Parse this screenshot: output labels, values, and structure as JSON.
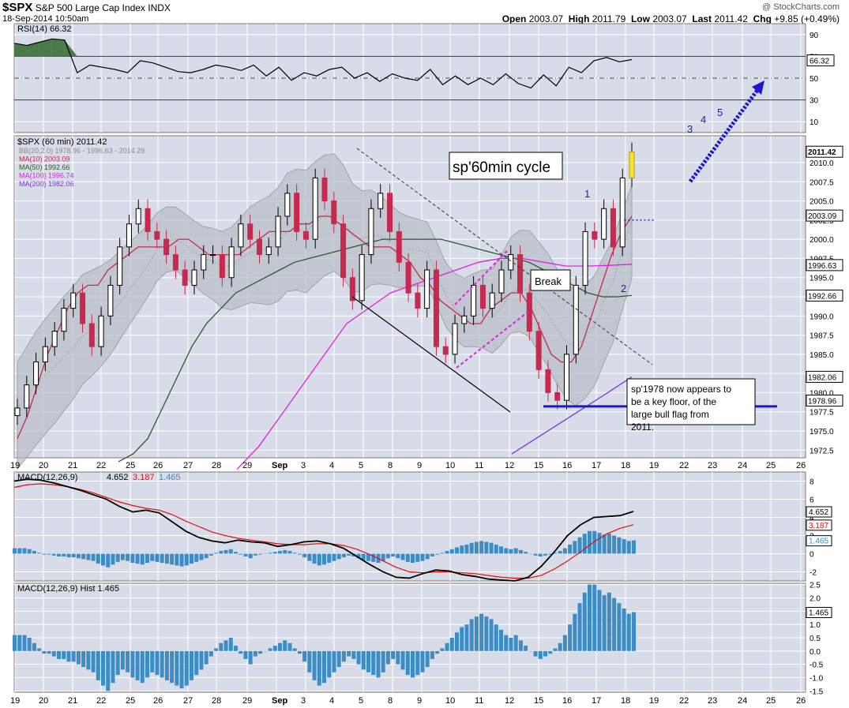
{
  "header": {
    "ticker": "$SPX",
    "name": "S&P 500 Large Cap Index",
    "exchange": "INDX",
    "date": "18-Sep-2014 10:50am",
    "watermark": "@ StockCharts.com",
    "open_label": "Open",
    "open": "2003.07",
    "high_label": "High",
    "high": "2011.79",
    "low_label": "Low",
    "low": "2003.07",
    "last_label": "Last",
    "last": "2011.42",
    "chg_label": "Chg",
    "chg": "+9.85",
    "chg_pct": "(+0.49%)"
  },
  "colors": {
    "background": "#d8dce8",
    "grid": "#ffffff",
    "candle_up": "#000000",
    "candle_down": "#c8294e",
    "bollinger_fill": "#b8bcc8",
    "ma10": "#c8294e",
    "ma50": "#2b5a2b",
    "ma100": "#e020e0",
    "ma200": "#7a3ad8",
    "macd_hist": "#3d8cc4",
    "annotation_blue": "#1a1acc",
    "rsi_area": "#4a7a4a"
  },
  "legend": {
    "price_title": "$SPX (60 min) 2011.42",
    "bb": "BB(20,2.0) 1978.96 - 1996.63 - 2014.29",
    "ma10": "MA(10) 2003.09",
    "ma50": "MA(50) 1992.66",
    "ma100": "MA(100) 1996.74",
    "ma200": "MA(200) 1982.06",
    "rsi": "RSI(14) 66.32",
    "macd_title": "MACD(12,26,9)",
    "macd_values": [
      "4.652",
      "3.187",
      "1.465"
    ],
    "hist_title": "MACD(12,26,9) Hist 1.465"
  },
  "annotations": {
    "cycle_box": "sp'60min cycle",
    "break_box": "Break",
    "floor_box": "sp'1978 now appears to be a key floor, of the large bull flag from 2011.",
    "wave_labels": [
      "1",
      "2",
      "3",
      "4",
      "5"
    ]
  },
  "chart_data": [
    {
      "type": "line",
      "title": "RSI(14) 66.32",
      "y_ticks": [
        10,
        30,
        50,
        70,
        90
      ],
      "ylim": [
        0,
        100
      ],
      "last_value": 66.32,
      "value_label": "66.32",
      "series": [
        {
          "name": "RSI(14)",
          "values": [
            82,
            80,
            83,
            86,
            85,
            55,
            62,
            60,
            58,
            55,
            66,
            64,
            60,
            56,
            55,
            58,
            62,
            60,
            57,
            62,
            52,
            60,
            48,
            55,
            52,
            58,
            60,
            50,
            55,
            47,
            54,
            50,
            48,
            58,
            44,
            52,
            44,
            50,
            44,
            54,
            45,
            41,
            53,
            43,
            60,
            55,
            66,
            69,
            65,
            67
          ]
        }
      ]
    },
    {
      "type": "candlestick",
      "title": "$SPX (60 min) 2011.42",
      "ylim": [
        1971.5,
        2013.5
      ],
      "y_ticks": [
        1972.5,
        1975,
        1977.5,
        1980,
        1982.5,
        1985,
        1987.5,
        1990,
        1992.5,
        1995,
        1997.5,
        2000,
        2002.5,
        2005,
        2007.5,
        2010
      ],
      "x_tick_labels": [
        "19",
        "20",
        "21",
        "22",
        "25",
        "26",
        "27",
        "28",
        "29",
        "Sep",
        "3",
        "4",
        "5",
        "8",
        "9",
        "10",
        "11",
        "12",
        "15",
        "16",
        "17",
        "18",
        "19",
        "22",
        "23",
        "24",
        "25",
        "26"
      ],
      "price_labels": [
        {
          "value": 2011.42,
          "text": "2011.42"
        },
        {
          "value": 2003.09,
          "text": "2003.09"
        },
        {
          "value": 1996.63,
          "text": "1996.63"
        },
        {
          "value": 1992.66,
          "text": "1992.66"
        },
        {
          "value": 1982.06,
          "text": "1982.06"
        },
        {
          "value": 1978.96,
          "text": "1978.96"
        }
      ],
      "closes": [
        1978,
        1981,
        1984,
        1986,
        1988,
        1991,
        1993,
        1989,
        1986,
        1990,
        1994,
        1999,
        2002,
        2004,
        2001,
        2000,
        1998,
        1996,
        1994,
        1996,
        1998,
        1998,
        1995,
        1999,
        2002,
        2000,
        1998,
        1999,
        2003,
        2006,
        2001,
        2000,
        2008,
        2005,
        2002,
        1995,
        1992,
        1998,
        2004,
        2006,
        2001,
        1997,
        1993,
        1991,
        1996,
        1986,
        1985,
        1989,
        1990,
        1994,
        1991,
        1993,
        1996,
        1998,
        1993,
        1988,
        1983,
        1980,
        1979,
        1985,
        1994,
        2001,
        2000,
        2004,
        1999,
        2008,
        2011.4
      ],
      "series": [
        {
          "name": "MA(10)",
          "values": [
            1974,
            1977,
            1981,
            1985,
            1988,
            1991,
            1993,
            1994,
            1994,
            1996,
            1997,
            1998,
            1999,
            1999,
            1999,
            1999,
            2000,
            2000,
            1999,
            1998,
            1998,
            1998,
            1998,
            1999,
            2000,
            2001,
            2001,
            2001,
            2002,
            2002,
            2003,
            2003,
            2002,
            2001,
            2000,
            1999,
            1999,
            1999,
            1998,
            1997,
            1995,
            1994,
            1992,
            1991,
            1990,
            1989,
            1989,
            1991,
            1992,
            1993,
            1993,
            1991,
            1988,
            1985,
            1984,
            1984,
            1986,
            1990,
            1994,
            1998,
            2001,
            2003
          ]
        },
        {
          "name": "MA(50)",
          "values": [
            1971,
            1972,
            1974,
            1978,
            1982,
            1986,
            1989,
            1991,
            1993,
            1994,
            1995,
            1996,
            1997,
            1997.5,
            1998,
            1998.5,
            1999,
            1999.5,
            2000,
            2000,
            2000,
            2000,
            2000,
            1999.5,
            1999,
            1998.5,
            1998,
            1997.5,
            1997,
            1996,
            1995,
            1994,
            1993,
            1992.5,
            1992.5,
            1992.66
          ]
        },
        {
          "name": "MA(100)",
          "values": [
            1970,
            1973,
            1977,
            1981,
            1985,
            1989,
            1991,
            1993,
            1994,
            1995,
            1996,
            1997,
            1997.5,
            1997.5,
            1997,
            1996.5,
            1996.5,
            1996.6,
            1996.74
          ]
        },
        {
          "name": "MA(200)",
          "values": [
            1972,
            1974,
            1976,
            1978,
            1980,
            1982.06
          ]
        }
      ]
    },
    {
      "type": "line",
      "title": "MACD(12,26,9) 4.652, 3.187, 1.465",
      "ylim": [
        -3,
        9
      ],
      "y_ticks": [
        -2,
        0,
        2,
        4,
        6,
        8
      ],
      "series": [
        {
          "name": "MACD",
          "values": [
            8,
            8.2,
            8.1,
            7.8,
            7.4,
            7,
            6.5,
            6,
            5.2,
            4.6,
            4.8,
            4.5,
            3.5,
            2.5,
            1.8,
            1.4,
            1.2,
            1.5,
            1.3,
            1.2,
            0.8,
            1,
            1.3,
            1.4,
            1.1,
            0.6,
            -0.3,
            -1.2,
            -2,
            -2.6,
            -2.7,
            -2.2,
            -1.8,
            -1.9,
            -2.3,
            -2.5,
            -2.8,
            -2.9,
            -3,
            -2.6,
            -1.4,
            0.2,
            2,
            3.2,
            4,
            4.1,
            4.2,
            4.652
          ]
        },
        {
          "name": "Signal",
          "values": [
            7.3,
            7.6,
            7.7,
            7.6,
            7.4,
            7.1,
            6.7,
            6.2,
            5.7,
            5.3,
            5,
            4.8,
            4.3,
            3.6,
            3,
            2.4,
            2,
            1.7,
            1.5,
            1.3,
            1.1,
            1,
            1,
            1.1,
            1.1,
            0.9,
            0.5,
            -0.1,
            -0.8,
            -1.5,
            -2,
            -2.1,
            -2,
            -2,
            -2.1,
            -2.2,
            -2.4,
            -2.6,
            -2.7,
            -2.7,
            -2.4,
            -1.7,
            -0.8,
            0.2,
            1.3,
            2.2,
            2.8,
            3.187
          ]
        }
      ]
    },
    {
      "type": "bar",
      "title": "MACD(12,26,9) Hist 1.465",
      "ylim": [
        -1.55,
        2.55
      ],
      "y_ticks": [
        -1.5,
        -1.0,
        -0.5,
        0.0,
        0.5,
        1.0,
        1.5,
        2.0,
        2.5
      ],
      "x_tick_labels": [
        "19",
        "20",
        "21",
        "22",
        "25",
        "26",
        "27",
        "28",
        "29",
        "Sep",
        "3",
        "4",
        "5",
        "8",
        "9",
        "10",
        "11",
        "12",
        "15",
        "16",
        "17",
        "18",
        "19",
        "22",
        "23",
        "24",
        "25",
        "26"
      ],
      "values": [
        0.6,
        0.6,
        0.6,
        0.5,
        0.3,
        0.1,
        -0.1,
        -0.1,
        -0.2,
        -0.3,
        -0.3,
        -0.4,
        -0.4,
        -0.5,
        -0.6,
        -0.7,
        -0.8,
        -1.1,
        -1.3,
        -1.5,
        -1.2,
        -0.9,
        -0.7,
        -0.8,
        -1.0,
        -1.1,
        -1.2,
        -1.0,
        -0.8,
        -0.9,
        -1.0,
        -1.1,
        -1.2,
        -1.3,
        -1.4,
        -1.3,
        -1.1,
        -0.9,
        -0.7,
        -0.5,
        -0.2,
        0.1,
        0.3,
        0.4,
        0.5,
        0.2,
        -0.1,
        -0.3,
        -0.5,
        -0.2,
        -0.1,
        0.0,
        0.1,
        0.2,
        0.3,
        0.4,
        0.3,
        0.1,
        -0.1,
        -0.4,
        -0.8,
        -1.1,
        -1.3,
        -1.2,
        -1.0,
        -0.8,
        -0.6,
        -0.4,
        -0.2,
        -0.3,
        -0.5,
        -0.7,
        -0.8,
        -0.9,
        -1.0,
        -0.8,
        -0.5,
        -0.3,
        -0.5,
        -0.7,
        -0.9,
        -1.0,
        -0.9,
        -0.8,
        -0.6,
        -0.3,
        -0.1,
        0.1,
        0.3,
        0.5,
        0.7,
        0.9,
        1.0,
        1.2,
        1.3,
        1.4,
        1.3,
        1.2,
        1.0,
        0.8,
        0.6,
        0.5,
        0.6,
        0.4,
        0.2,
        0.0,
        -0.2,
        -0.3,
        -0.2,
        -0.1,
        0.1,
        0.3,
        0.6,
        1.0,
        1.4,
        1.8,
        2.2,
        2.5,
        2.5,
        2.3,
        2.1,
        2.2,
        2.0,
        1.8,
        1.6,
        1.4,
        1.465
      ]
    }
  ]
}
